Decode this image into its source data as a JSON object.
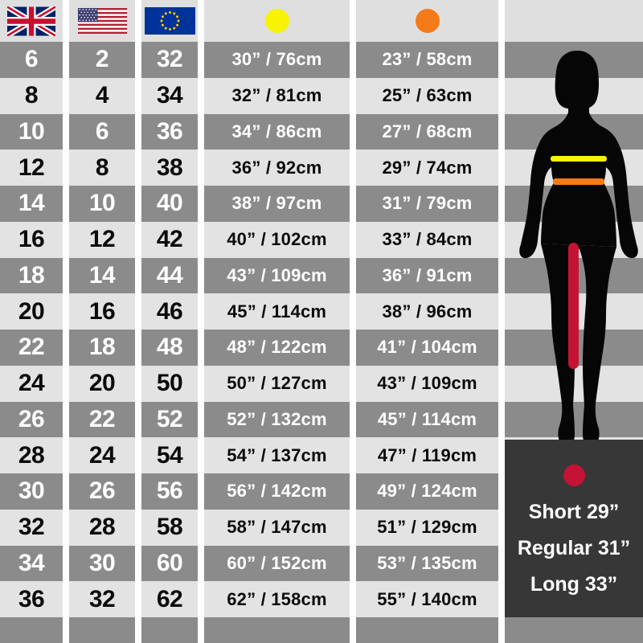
{
  "columns": {
    "uk": {
      "header_icon": "uk-flag"
    },
    "us": {
      "header_icon": "us-flag"
    },
    "eu": {
      "header_icon": "eu-flag"
    },
    "waist": {
      "header_icon": "yellow-dot",
      "color": "#F8F203"
    },
    "hip": {
      "header_icon": "orange-dot",
      "color": "#F57A18"
    }
  },
  "rows": [
    {
      "uk": "6",
      "us": "2",
      "eu": "32",
      "waist": "30” / 76cm",
      "hip": "23” / 58cm"
    },
    {
      "uk": "8",
      "us": "4",
      "eu": "34",
      "waist": "32” / 81cm",
      "hip": "25” / 63cm"
    },
    {
      "uk": "10",
      "us": "6",
      "eu": "36",
      "waist": "34” / 86cm",
      "hip": "27” / 68cm"
    },
    {
      "uk": "12",
      "us": "8",
      "eu": "38",
      "waist": "36” / 92cm",
      "hip": "29” / 74cm"
    },
    {
      "uk": "14",
      "us": "10",
      "eu": "40",
      "waist": "38” / 97cm",
      "hip": "31” / 79cm"
    },
    {
      "uk": "16",
      "us": "12",
      "eu": "42",
      "waist": "40” / 102cm",
      "hip": "33” / 84cm"
    },
    {
      "uk": "18",
      "us": "14",
      "eu": "44",
      "waist": "43” / 109cm",
      "hip": "36” / 91cm"
    },
    {
      "uk": "20",
      "us": "16",
      "eu": "46",
      "waist": "45” / 114cm",
      "hip": "38” / 96cm"
    },
    {
      "uk": "22",
      "us": "18",
      "eu": "48",
      "waist": "48” / 122cm",
      "hip": "41” / 104cm"
    },
    {
      "uk": "24",
      "us": "20",
      "eu": "50",
      "waist": "50” / 127cm",
      "hip": "43” / 109cm"
    },
    {
      "uk": "26",
      "us": "22",
      "eu": "52",
      "waist": "52” / 132cm",
      "hip": "45” / 114cm"
    },
    {
      "uk": "28",
      "us": "24",
      "eu": "54",
      "waist": "54” / 137cm",
      "hip": "47” / 119cm"
    },
    {
      "uk": "30",
      "us": "26",
      "eu": "56",
      "waist": "56” / 142cm",
      "hip": "49” / 124cm"
    },
    {
      "uk": "32",
      "us": "28",
      "eu": "58",
      "waist": "58” / 147cm",
      "hip": "51” / 129cm"
    },
    {
      "uk": "34",
      "us": "30",
      "eu": "60",
      "waist": "60” / 152cm",
      "hip": "53” / 135cm"
    },
    {
      "uk": "36",
      "us": "32",
      "eu": "62",
      "waist": "62” / 158cm",
      "hip": "55” / 140cm"
    }
  ],
  "legend": {
    "dot_color": "#C41334",
    "lines": [
      "Short 29”",
      "Regular 31”",
      "Long 33”"
    ]
  },
  "figure": {
    "silhouette": "woman-front-silhouette",
    "waist_line_color": "#F8F203",
    "hip_line_color": "#F57A18",
    "inseam_line_color": "#C41334"
  },
  "colors": {
    "row_dark": "#8B8B8B",
    "row_light": "#E3E3E3",
    "header_bg": "#DFDFDF",
    "legend_bg": "#373737",
    "gutter": "#FFFFFF",
    "silhouette": "#060606"
  }
}
